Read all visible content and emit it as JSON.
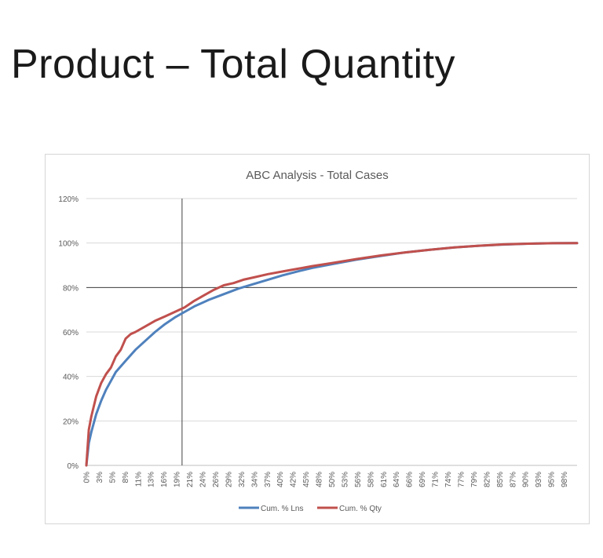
{
  "slide": {
    "title": "Product – Total Quantity"
  },
  "chart_data": {
    "type": "line",
    "title": "ABC Analysis - Total Cases",
    "xlabel": "",
    "ylabel": "",
    "ylim": [
      0,
      1.2
    ],
    "y_ticks": [
      "0%",
      "20%",
      "40%",
      "60%",
      "80%",
      "100%",
      "120%"
    ],
    "x_tick_labels": [
      "0%",
      "3%",
      "5%",
      "8%",
      "11%",
      "13%",
      "16%",
      "19%",
      "21%",
      "24%",
      "26%",
      "29%",
      "32%",
      "34%",
      "37%",
      "40%",
      "42%",
      "45%",
      "48%",
      "50%",
      "53%",
      "56%",
      "58%",
      "61%",
      "64%",
      "66%",
      "69%",
      "71%",
      "74%",
      "77%",
      "79%",
      "82%",
      "85%",
      "87%",
      "90%",
      "93%",
      "95%",
      "98%"
    ],
    "grid": "horizontal",
    "legend_position": "bottom",
    "reference_lines": {
      "x": 0.195,
      "y": 0.8
    },
    "series": [
      {
        "name": "Cum. % Lns",
        "color": "#4f81bd",
        "x": [
          0,
          0.005,
          0.01,
          0.02,
          0.03,
          0.04,
          0.05,
          0.06,
          0.08,
          0.1,
          0.12,
          0.14,
          0.16,
          0.18,
          0.2,
          0.22,
          0.25,
          0.28,
          0.31,
          0.34,
          0.37,
          0.4,
          0.43,
          0.46,
          0.5,
          0.55,
          0.6,
          0.65,
          0.7,
          0.75,
          0.8,
          0.85,
          0.9,
          0.95,
          1.0
        ],
        "y": [
          0,
          0.1,
          0.15,
          0.23,
          0.29,
          0.34,
          0.38,
          0.42,
          0.47,
          0.52,
          0.56,
          0.6,
          0.635,
          0.665,
          0.69,
          0.715,
          0.745,
          0.77,
          0.795,
          0.815,
          0.835,
          0.855,
          0.872,
          0.888,
          0.905,
          0.925,
          0.942,
          0.958,
          0.97,
          0.98,
          0.988,
          0.993,
          0.997,
          0.999,
          1.0
        ]
      },
      {
        "name": "Cum. % Qty",
        "color": "#c0504d",
        "x": [
          0,
          0.005,
          0.01,
          0.02,
          0.03,
          0.04,
          0.05,
          0.06,
          0.07,
          0.08,
          0.09,
          0.1,
          0.12,
          0.14,
          0.16,
          0.18,
          0.2,
          0.22,
          0.24,
          0.26,
          0.28,
          0.3,
          0.32,
          0.34,
          0.37,
          0.4,
          0.43,
          0.46,
          0.5,
          0.55,
          0.6,
          0.65,
          0.7,
          0.75,
          0.8,
          0.85,
          0.9,
          0.95,
          1.0
        ],
        "y": [
          0,
          0.16,
          0.22,
          0.31,
          0.37,
          0.41,
          0.44,
          0.49,
          0.52,
          0.57,
          0.59,
          0.6,
          0.625,
          0.65,
          0.67,
          0.69,
          0.71,
          0.74,
          0.765,
          0.79,
          0.81,
          0.82,
          0.835,
          0.845,
          0.86,
          0.872,
          0.884,
          0.896,
          0.91,
          0.928,
          0.944,
          0.958,
          0.97,
          0.98,
          0.988,
          0.994,
          0.997,
          0.999,
          1.0
        ]
      }
    ]
  }
}
